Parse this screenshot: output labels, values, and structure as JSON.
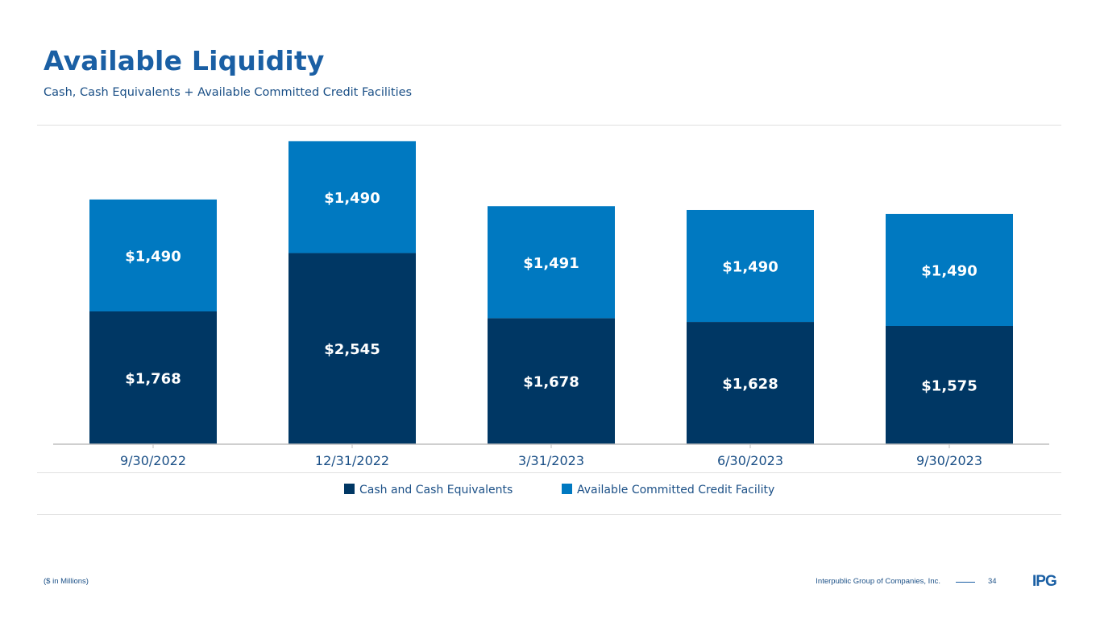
{
  "header": {
    "title": "Available Liquidity",
    "subtitle": "Cash, Cash Equivalents + Available Committed Credit Facilities"
  },
  "colors": {
    "cash": "#003764",
    "credit": "#0079c1",
    "title": "#1a5fa4",
    "text": "#1a4f86"
  },
  "chart_data": {
    "type": "bar",
    "stacked": true,
    "categories": [
      "9/30/2022",
      "12/31/2022",
      "3/31/2023",
      "6/30/2023",
      "9/30/2023"
    ],
    "series": [
      {
        "name": "Cash and Cash Equivalents",
        "values": [
          1768,
          2545,
          1678,
          1628,
          1575
        ],
        "labels": [
          "$1,768",
          "$2,545",
          "$1,678",
          "$1,628",
          "$1,575"
        ]
      },
      {
        "name": "Available Committed Credit Facility",
        "values": [
          1490,
          1490,
          1491,
          1490,
          1490
        ],
        "labels": [
          "$1,490",
          "$1,490",
          "$1,491",
          "$1,490",
          "$1,490"
        ]
      }
    ],
    "units": "$ in Millions",
    "ylim": [
      0,
      4200
    ],
    "legend_position": "bottom-center"
  },
  "legend": {
    "cash_label": "Cash and Cash Equivalents",
    "credit_label": "Available Committed Credit Facility"
  },
  "footer": {
    "note": "($ in Millions)",
    "company": "Interpublic Group of Companies, Inc.",
    "page_number": "34",
    "logo_text": "IPG"
  }
}
